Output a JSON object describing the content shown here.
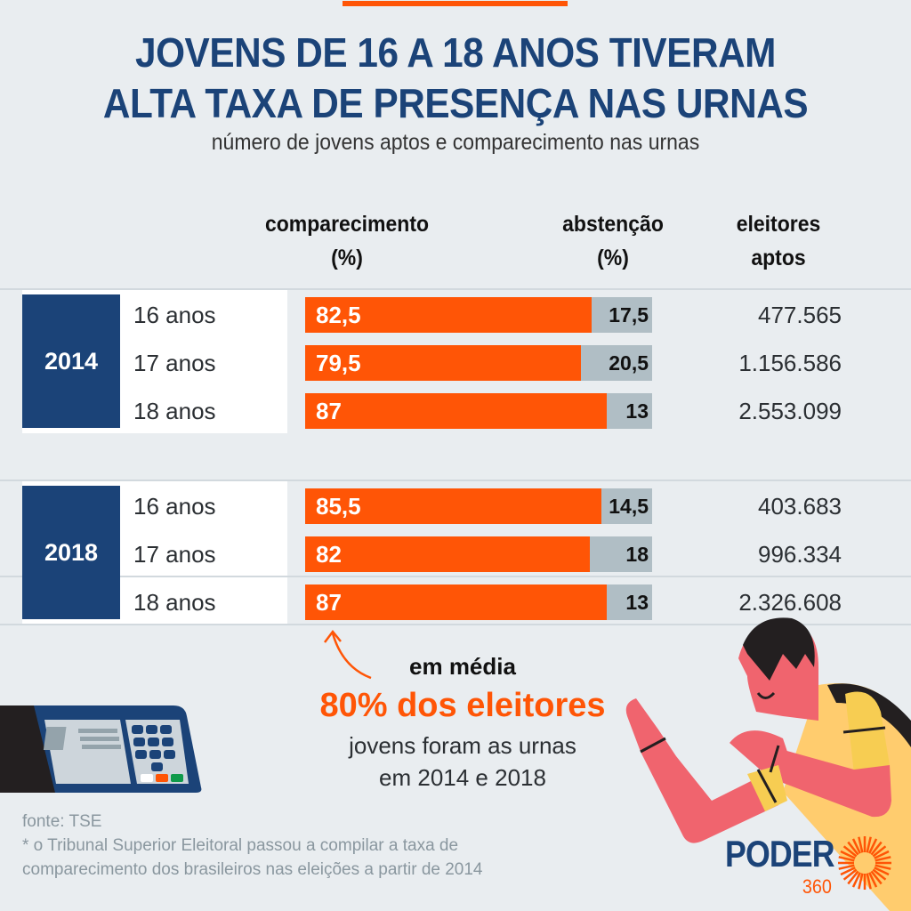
{
  "header": {
    "title_line1": "JOVENS DE 16 A 18 ANOS TIVERAM",
    "title_line2": "ALTA TAXA DE PRESENÇA NAS URNAS",
    "subtitle": "número de jovens aptos e comparecimento nas urnas"
  },
  "columns": {
    "attendance_l1": "comparecimento",
    "attendance_l2": "(%)",
    "abstention_l1": "abstenção",
    "abstention_l2": "(%)",
    "voters_l1": "eleitores",
    "voters_l2": "aptos"
  },
  "chart_data": {
    "type": "bar",
    "stacked": true,
    "title": "JOVENS DE 16 A 18 ANOS TIVERAM ALTA TAXA DE PRESENÇA NAS URNAS",
    "subtitle": "número de jovens aptos e comparecimento nas urnas",
    "xlim": [
      0,
      100
    ],
    "unit": "%",
    "groups": [
      {
        "year": "2014",
        "rows": [
          {
            "age": "16 anos",
            "attendance": 82.5,
            "attendance_label": "82,5",
            "abstention": 17.5,
            "abstention_label": "17,5",
            "eligible_voters": "477.565"
          },
          {
            "age": "17 anos",
            "attendance": 79.5,
            "attendance_label": "79,5",
            "abstention": 20.5,
            "abstention_label": "20,5",
            "eligible_voters": "1.156.586"
          },
          {
            "age": "18 anos",
            "attendance": 87,
            "attendance_label": "87",
            "abstention": 13,
            "abstention_label": "13",
            "eligible_voters": "2.553.099"
          }
        ]
      },
      {
        "year": "2018",
        "rows": [
          {
            "age": "16 anos",
            "attendance": 85.5,
            "attendance_label": "85,5",
            "abstention": 14.5,
            "abstention_label": "14,5",
            "eligible_voters": "403.683"
          },
          {
            "age": "17 anos",
            "attendance": 82,
            "attendance_label": "82",
            "abstention": 18,
            "abstention_label": "18",
            "eligible_voters": "996.334"
          },
          {
            "age": "18 anos",
            "attendance": 87,
            "attendance_label": "87",
            "abstention": 13,
            "abstention_label": "13",
            "eligible_voters": "2.326.608"
          }
        ]
      }
    ],
    "series_colors": {
      "attendance": "#ff5506",
      "abstention": "#b0bec5"
    }
  },
  "callout": {
    "lead": "em média",
    "highlight": "80% dos eleitores",
    "line1": "jovens foram as urnas",
    "line2": "em 2014 e 2018"
  },
  "footer": {
    "source": "fonte: TSE",
    "note_line1": "* o Tribunal Superior Eleitoral passou a compilar a taxa de",
    "note_line2": "comparecimento dos brasileiros nas eleições a partir de 2014"
  },
  "logo": {
    "word": "PODER",
    "number": "360"
  },
  "colors": {
    "accent": "#ff5506",
    "navy": "#1b4378",
    "background": "#e9edf0",
    "grey_bar": "#b0bec5"
  },
  "icons": [
    "voting-machine-illustration",
    "person-pointing-illustration",
    "curved-arrow-icon",
    "sun-burst-logo-icon"
  ]
}
